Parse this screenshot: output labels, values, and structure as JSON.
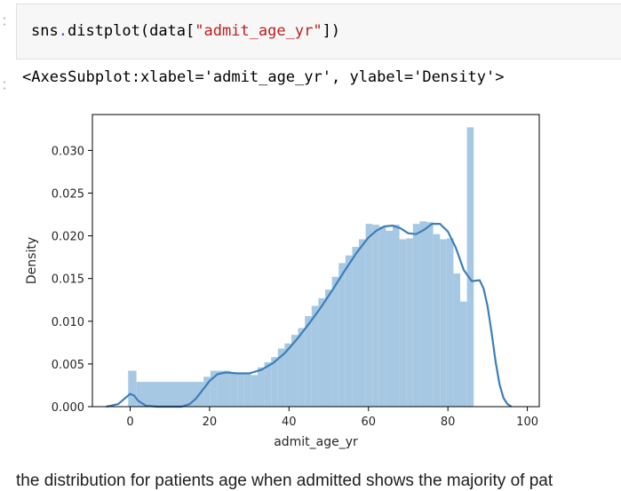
{
  "code_cell": {
    "code_prefix": "sns",
    "code_dot": ".",
    "code_call": "distplot(data[",
    "code_arg": "\"admit_age_yr\"",
    "code_close": "])"
  },
  "output_cell": {
    "text": "<AxesSubplot:xlabel='admit_age_yr', ylabel='Density'>"
  },
  "chart_data": {
    "type": "bar",
    "xlabel": "admit_age_yr",
    "ylabel": "Density",
    "xlim": [
      -9.5,
      103
    ],
    "ylim": [
      0,
      0.0342
    ],
    "x_ticks": [
      "0",
      "20",
      "40",
      "60",
      "80",
      "100"
    ],
    "x_tick_values": [
      0,
      20,
      40,
      60,
      80,
      100
    ],
    "y_ticks": [
      "0.000",
      "0.005",
      "0.010",
      "0.015",
      "0.020",
      "0.025",
      "0.030"
    ],
    "y_tick_values": [
      0,
      0.005,
      0.01,
      0.015,
      0.02,
      0.025,
      0.03
    ],
    "histogram": {
      "bin_edges": [
        -0.5,
        1.6,
        18.5,
        20.2,
        21.9,
        23.6,
        25.3,
        27.0,
        28.7,
        30.4,
        32.1,
        33.8,
        35.5,
        37.2,
        38.9,
        40.6,
        42.3,
        44.0,
        45.7,
        47.4,
        49.1,
        50.8,
        52.5,
        54.2,
        55.9,
        57.6,
        59.3,
        61.0,
        62.7,
        64.4,
        66.1,
        67.8,
        69.5,
        71.2,
        72.9,
        74.6,
        76.3,
        78.0,
        79.7,
        81.4,
        83.1,
        84.8,
        86.5,
        88.2,
        89.9
      ],
      "densities": [
        0.0042,
        0.0029,
        0.0035,
        0.0042,
        0.0042,
        0.0042,
        0.0039,
        0.0039,
        0.0039,
        0.0037,
        0.0046,
        0.0052,
        0.0058,
        0.0068,
        0.0074,
        0.0084,
        0.0092,
        0.0106,
        0.0118,
        0.0127,
        0.0137,
        0.0152,
        0.0168,
        0.0177,
        0.0187,
        0.0196,
        0.0214,
        0.0213,
        0.0211,
        0.0206,
        0.0213,
        0.0196,
        0.0197,
        0.0214,
        0.0217,
        0.0216,
        0.0202,
        0.0196,
        0.0197,
        0.0156,
        0.0123,
        0.0327,
        0.0
      ],
      "color": "#a6c8e3"
    },
    "kde": {
      "x": [
        -6,
        -3,
        -1,
        0,
        1,
        2,
        4,
        7,
        10,
        13,
        15,
        16.5,
        18,
        20,
        22,
        24,
        27,
        30,
        33,
        36,
        39,
        42,
        45,
        48,
        51,
        54,
        57,
        60,
        62,
        64,
        66,
        68,
        70,
        72,
        74,
        76,
        78,
        80,
        82,
        84,
        86,
        88,
        89,
        90,
        91,
        92,
        93,
        94,
        95,
        96
      ],
      "y": [
        0.0,
        0.0003,
        0.0011,
        0.0015,
        0.0013,
        0.0007,
        0.0001,
        0.0,
        0.0,
        0.0,
        0.0003,
        0.0009,
        0.0018,
        0.003,
        0.0038,
        0.004,
        0.0039,
        0.0039,
        0.0043,
        0.0051,
        0.0063,
        0.0079,
        0.0097,
        0.0116,
        0.0137,
        0.0159,
        0.018,
        0.0198,
        0.0206,
        0.0211,
        0.0212,
        0.0209,
        0.0203,
        0.0202,
        0.0207,
        0.0214,
        0.0214,
        0.0205,
        0.0186,
        0.016,
        0.0147,
        0.0148,
        0.0138,
        0.0117,
        0.0087,
        0.0053,
        0.0026,
        0.001,
        0.0003,
        0.0
      ],
      "color": "#3e7eb8"
    }
  },
  "bottom_text": "the distribution for patients age when admitted shows the majority of pat"
}
